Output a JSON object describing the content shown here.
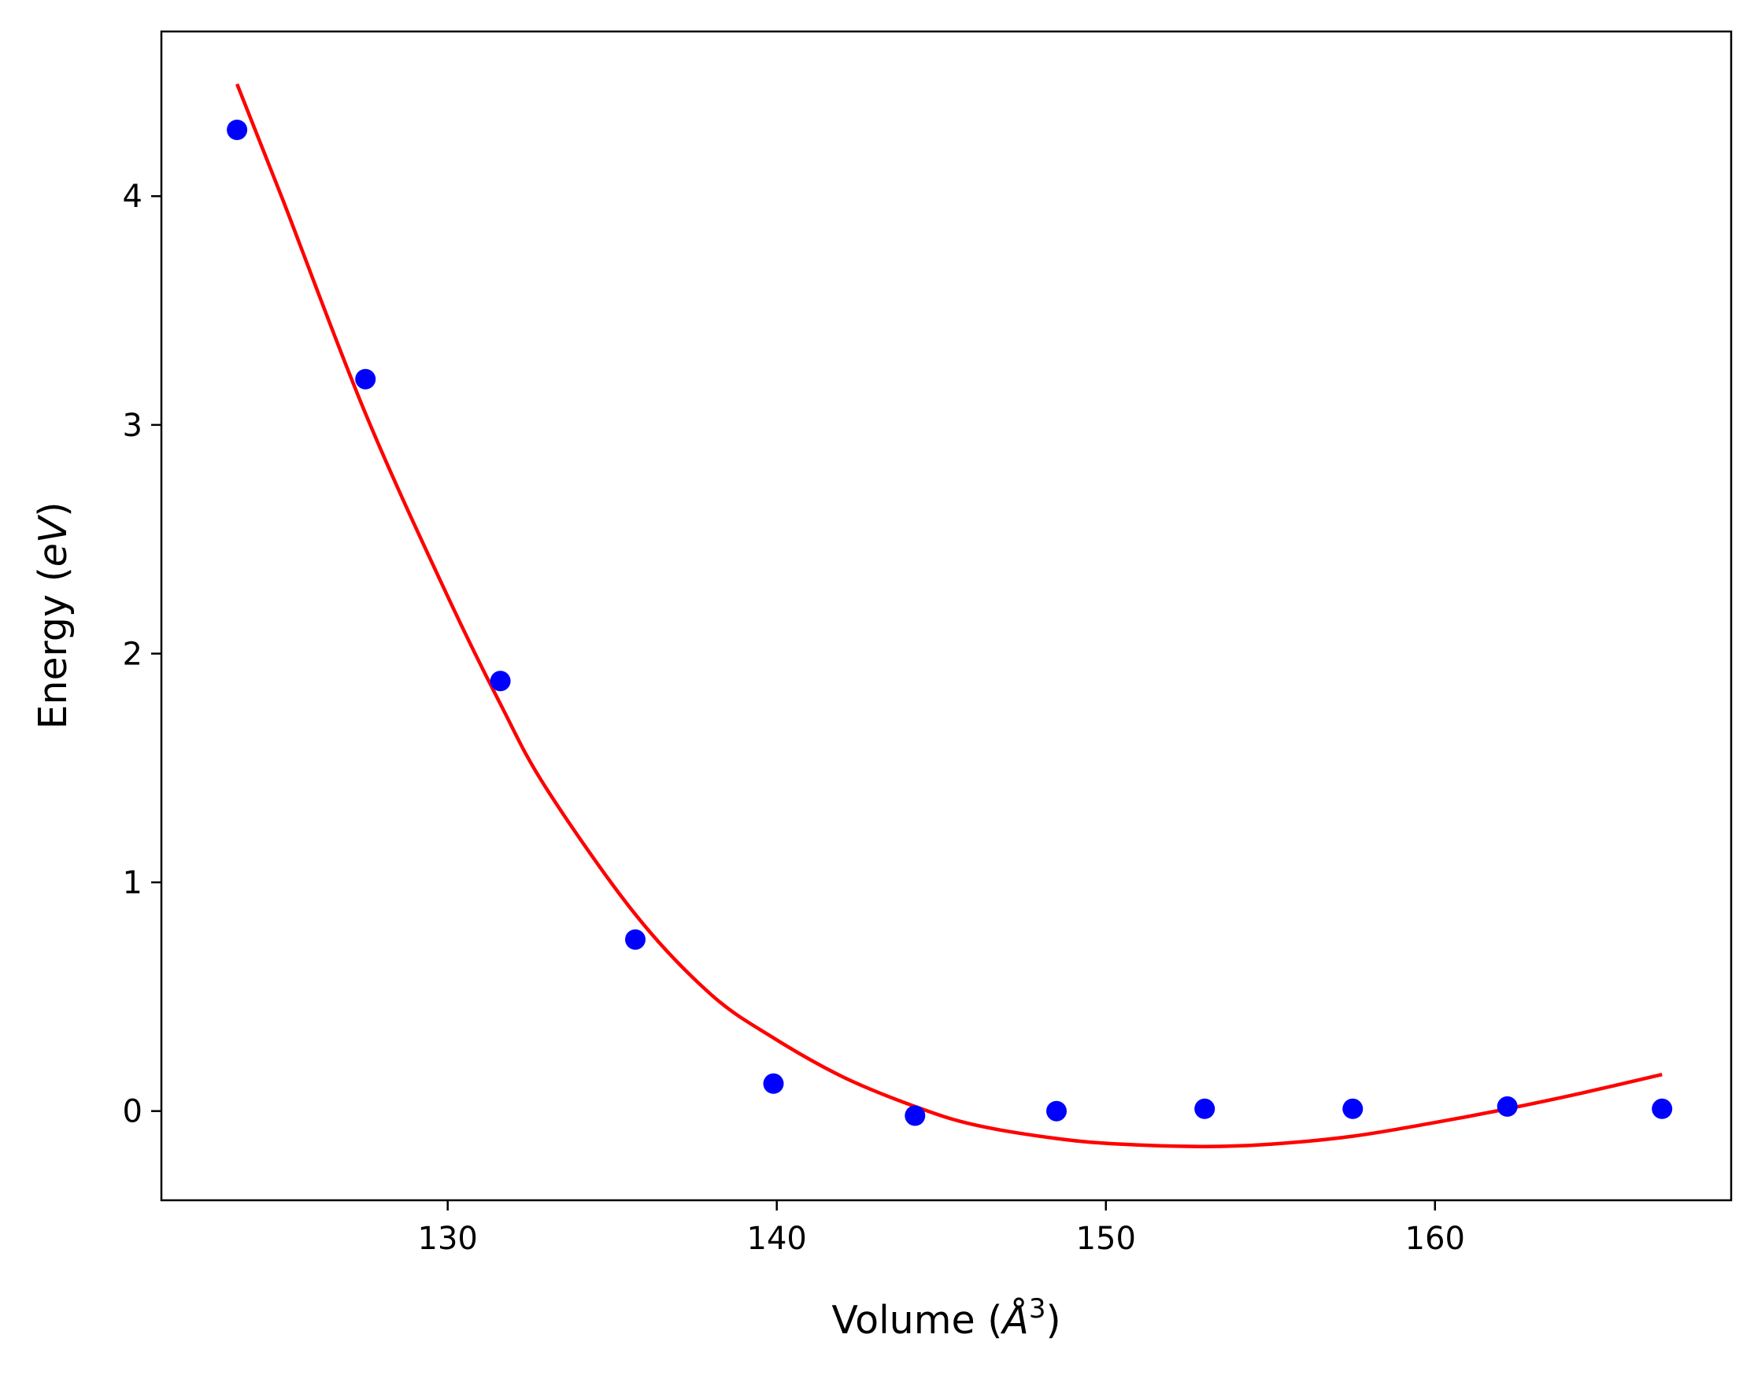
{
  "chart_data": {
    "type": "scatter",
    "xlabel": {
      "main": "Volume (",
      "italic": "Å",
      "sup": "3",
      "end": ")"
    },
    "ylabel": {
      "main": "Energy (",
      "italic": "eV",
      "end": ")"
    },
    "xlim": [
      121.3,
      169.0
    ],
    "ylim": [
      -0.39,
      4.72
    ],
    "xticks": [
      130,
      140,
      150,
      160
    ],
    "yticks": [
      0,
      1,
      2,
      3,
      4
    ],
    "grid": false,
    "legend": "none",
    "series": [
      {
        "kind": "points",
        "color": "#0000ff",
        "x": [
          123.6,
          127.5,
          131.6,
          135.7,
          139.9,
          144.2,
          148.5,
          153.0,
          157.5,
          162.2,
          166.9
        ],
        "y": [
          4.29,
          3.2,
          1.88,
          0.75,
          0.12,
          -0.02,
          0.0,
          0.01,
          0.01,
          0.02,
          0.01
        ]
      },
      {
        "kind": "fit-curve",
        "color": "#ff0000",
        "x": [
          123.6,
          125.0,
          127.5,
          130.0,
          131.6,
          133.0,
          135.7,
          138.0,
          139.9,
          142.0,
          144.2,
          146.0,
          148.5,
          150.5,
          153.0,
          155.0,
          157.5,
          160.0,
          162.2,
          164.5,
          166.9
        ],
        "y": [
          4.49,
          3.98,
          3.05,
          2.25,
          1.78,
          1.41,
          0.86,
          0.51,
          0.32,
          0.15,
          0.02,
          -0.06,
          -0.12,
          -0.145,
          -0.155,
          -0.145,
          -0.11,
          -0.05,
          0.01,
          0.08,
          0.16
        ]
      }
    ]
  }
}
